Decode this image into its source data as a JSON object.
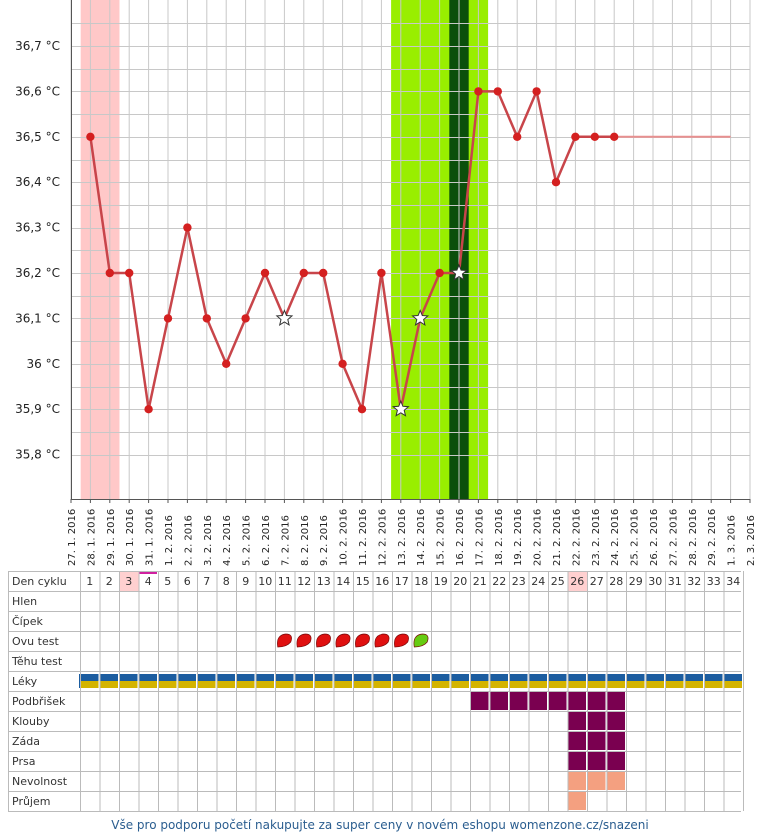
{
  "chart_data": {
    "type": "line",
    "y_unit": "°C",
    "y_ticks": [
      "35,8 °C",
      "35,9 °C",
      "36 °C",
      "36,1 °C",
      "36,2 °C",
      "36,3 °C",
      "36,4 °C",
      "36,5 °C",
      "36,6 °C",
      "36,7 °C"
    ],
    "ylim": [
      35.7,
      36.8
    ],
    "x_dates": [
      "27. 1. 2016",
      "28. 1. 2016",
      "29. 1. 2016",
      "30. 1. 2016",
      "31. 1. 2016",
      "1. 2. 2016",
      "2. 2. 2016",
      "3. 2. 2016",
      "4. 2. 2016",
      "5. 2. 2016",
      "6. 2. 2016",
      "7. 2. 2016",
      "8. 2. 2016",
      "9. 2. 2016",
      "10. 2. 2016",
      "11. 2. 2016",
      "12. 2. 2016",
      "13. 2. 2016",
      "14. 2. 2016",
      "15. 2. 2016",
      "16. 2. 2016",
      "17. 2. 2016",
      "18. 2. 2016",
      "19. 2. 2016",
      "20. 2. 2016",
      "21. 2. 2016",
      "22. 2. 2016",
      "23. 2. 2016",
      "24. 2. 2016",
      "25. 2. 2016",
      "26. 2. 2016",
      "27. 2. 2016",
      "28. 2. 2016",
      "29. 2. 2016",
      "1. 3. 2016",
      "2. 3. 2016"
    ],
    "series": [
      {
        "values": [
          null,
          36.5,
          36.2,
          36.2,
          35.9,
          36.1,
          36.3,
          36.1,
          36.0,
          36.1,
          36.2,
          36.1,
          36.2,
          36.2,
          36.0,
          35.9,
          36.2,
          35.9,
          36.1,
          36.2,
          36.2,
          36.6,
          36.6,
          36.5,
          36.6,
          36.4,
          36.5,
          36.5,
          36.5
        ],
        "star_points": [
          "7. 2. 2016",
          "13. 2. 2016",
          "14. 2. 2016",
          "16. 2. 2016"
        ],
        "color": "#c8454a",
        "dot_color": "#d42020"
      }
    ],
    "projection": {
      "from": "24. 2. 2016",
      "to": "1. 3. 2016",
      "value": 36.5,
      "color": "#e89090"
    },
    "highlights": [
      {
        "from": "28. 1. 2016",
        "to": "29. 1. 2016",
        "color": "#ffc8c8"
      },
      {
        "from": "13. 2. 2016",
        "to": "17. 2. 2016",
        "color": "#99ee00"
      },
      {
        "from": "16. 2. 2016",
        "to": "16. 2. 2016",
        "color": "#0b4f0b"
      }
    ],
    "grid": true
  },
  "table": {
    "header_label": "Den cyklu",
    "days": [
      "1",
      "2",
      "3",
      "4",
      "5",
      "6",
      "7",
      "8",
      "9",
      "10",
      "11",
      "12",
      "13",
      "14",
      "15",
      "16",
      "17",
      "18",
      "19",
      "20",
      "21",
      "22",
      "23",
      "24",
      "25",
      "26",
      "27",
      "28",
      "29",
      "30",
      "31",
      "32",
      "33",
      "34"
    ],
    "highlight_days": [
      "3",
      "26"
    ],
    "current_day": "4",
    "rows": [
      {
        "label": "Hlen"
      },
      {
        "label": "Čípek"
      },
      {
        "label": "Ovu test",
        "icons": [
          {
            "day": "11",
            "color": "#e01010"
          },
          {
            "day": "12",
            "color": "#e01010"
          },
          {
            "day": "13",
            "color": "#e01010"
          },
          {
            "day": "14",
            "color": "#e01010"
          },
          {
            "day": "15",
            "color": "#e01010"
          },
          {
            "day": "16",
            "color": "#e01010"
          },
          {
            "day": "17",
            "color": "#e01010"
          },
          {
            "day": "18",
            "color": "#66cc11"
          }
        ]
      },
      {
        "label": "Těhu test"
      },
      {
        "label": "Léky",
        "stripe_all": true
      },
      {
        "label": "Podbřišek",
        "filled": [
          "21",
          "22",
          "23",
          "24",
          "25",
          "26",
          "27",
          "28"
        ],
        "color": "#7a0050"
      },
      {
        "label": "Klouby",
        "filled": [
          "26",
          "27",
          "28"
        ],
        "color": "#7a0050"
      },
      {
        "label": "Záda",
        "filled": [
          "26",
          "27",
          "28"
        ],
        "color": "#7a0050"
      },
      {
        "label": "Prsa",
        "filled": [
          "26",
          "27",
          "28"
        ],
        "color": "#7a0050"
      },
      {
        "label": "Nevolnost",
        "filled": [
          "26",
          "27",
          "28"
        ],
        "color": "#f4a080"
      },
      {
        "label": "Průjem",
        "filled": [
          "26"
        ],
        "color": "#f4a080"
      }
    ],
    "stripe_colors": [
      "#1c5da0",
      "#d4b400"
    ]
  },
  "footer_text": "Vše pro podporu početí nakupujte za super ceny v novém eshopu womenzone.cz/snazeni"
}
